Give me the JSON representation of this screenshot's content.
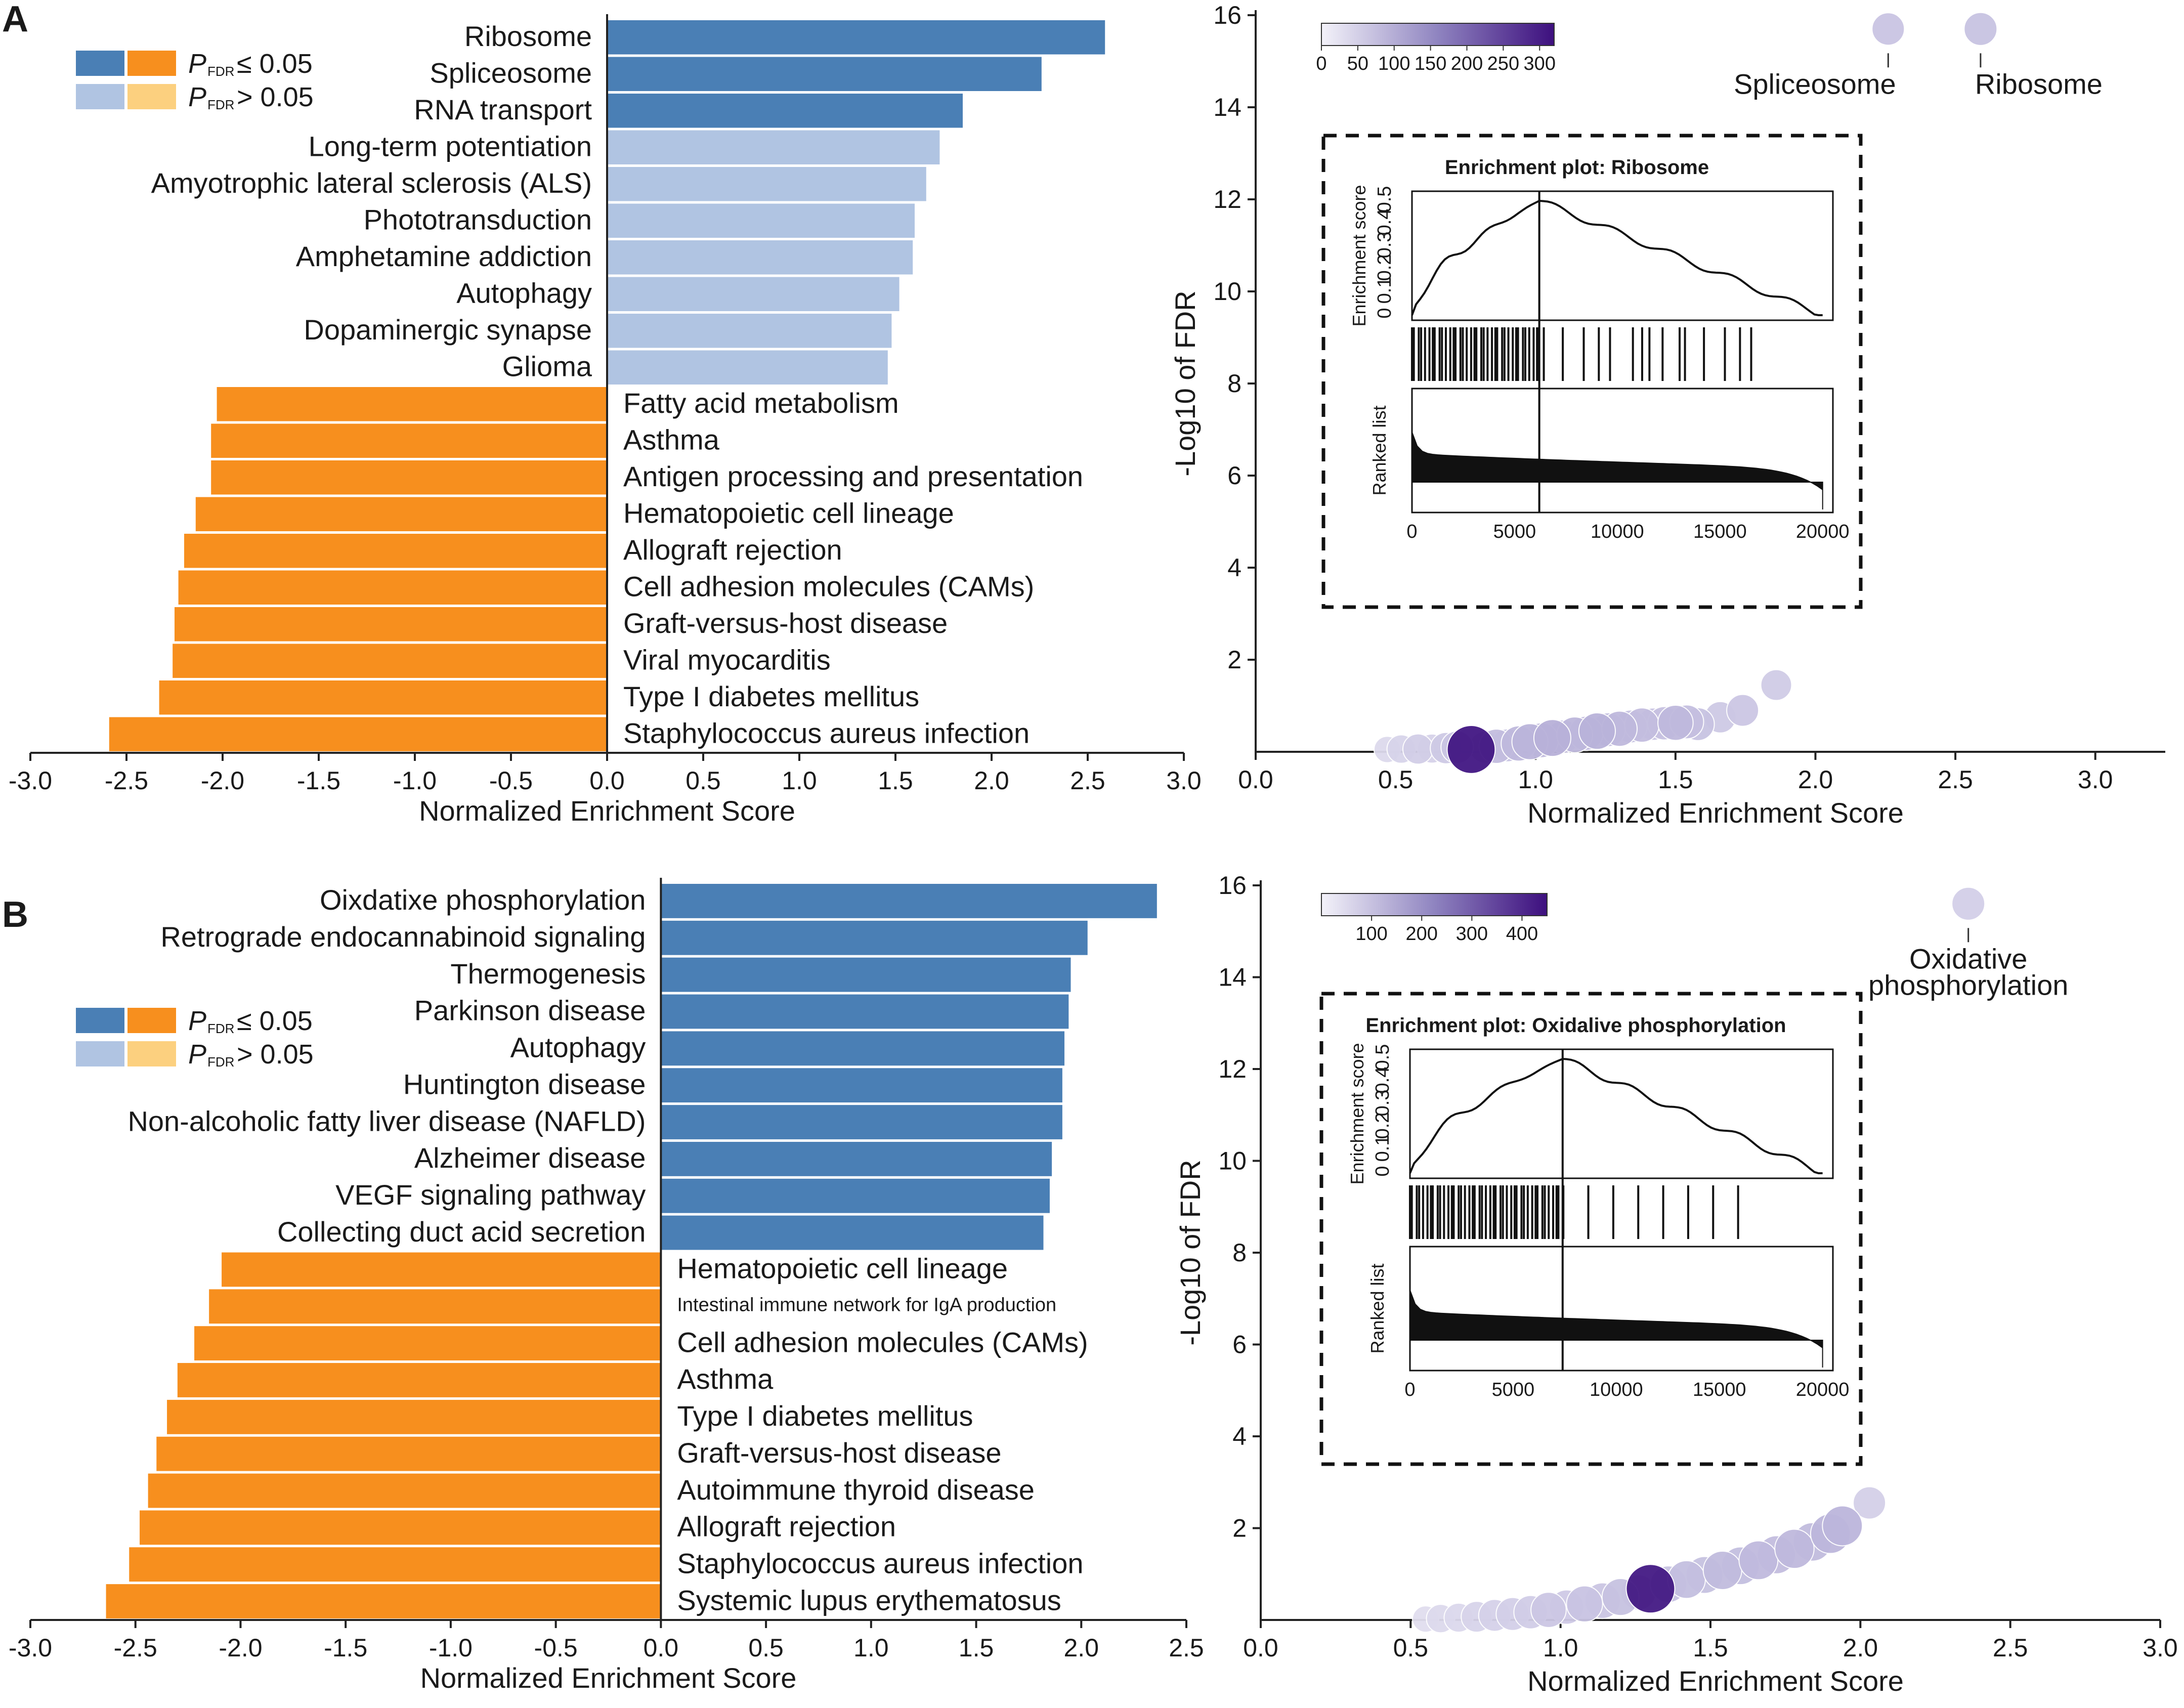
{
  "colors": {
    "sig_up": "#4a7fb5",
    "nonsig_up": "#b0c4e2",
    "sig_down": "#f78f1e",
    "nonsig_down": "#fcd07f",
    "bubble_light": "#e6e4f2",
    "bubble_dark": "#3d0f7e"
  },
  "chart_data": [
    {
      "panel": "A",
      "type": "bar",
      "orientation": "horizontal",
      "xlabel": "Normalized Enrichment Score",
      "xlim": [
        -3.0,
        3.0
      ],
      "xticks": [
        "-3.0",
        "-2.5",
        "-2.0",
        "-1.5",
        "-1.0",
        "-0.5",
        "0.0",
        "0.5",
        "1.0",
        "1.5",
        "2.0",
        "2.5",
        "3.0"
      ],
      "legend": [
        {
          "label": "P",
          "sub": "FDR",
          "rel": "≤ 0.05",
          "colors": [
            "#4a7fb5",
            "#f78f1e"
          ]
        },
        {
          "label": "P",
          "sub": "FDR",
          "rel": "> 0.05",
          "colors": [
            "#b0c4e2",
            "#fcd07f"
          ]
        }
      ],
      "bars": [
        {
          "term": "Ribosome",
          "value": 2.59,
          "sig": true
        },
        {
          "term": "Spliceosome",
          "value": 2.26,
          "sig": true
        },
        {
          "term": "RNA transport",
          "value": 1.85,
          "sig": true
        },
        {
          "term": "Long-term potentiation",
          "value": 1.73,
          "sig": false
        },
        {
          "term": "Amyotrophic lateral sclerosis (ALS)",
          "value": 1.66,
          "sig": false
        },
        {
          "term": "Phototransduction",
          "value": 1.6,
          "sig": false
        },
        {
          "term": "Amphetamine addiction",
          "value": 1.59,
          "sig": false
        },
        {
          "term": "Autophagy",
          "value": 1.52,
          "sig": false
        },
        {
          "term": "Dopaminergic synapse",
          "value": 1.48,
          "sig": false
        },
        {
          "term": "Glioma",
          "value": 1.46,
          "sig": false
        },
        {
          "term": "Fatty acid metabolism",
          "value": -2.03,
          "sig": true
        },
        {
          "term": "Asthma",
          "value": -2.06,
          "sig": true
        },
        {
          "term": "Antigen processing and presentation",
          "value": -2.06,
          "sig": true
        },
        {
          "term": "Hematopoietic cell lineage",
          "value": -2.14,
          "sig": true
        },
        {
          "term": "Allograft rejection",
          "value": -2.2,
          "sig": true
        },
        {
          "term": "Cell adhesion molecules (CAMs)",
          "value": -2.23,
          "sig": true
        },
        {
          "term": "Graft-versus-host disease",
          "value": -2.25,
          "sig": true
        },
        {
          "term": "Viral myocarditis",
          "value": -2.26,
          "sig": true
        },
        {
          "term": "Type I diabetes mellitus",
          "value": -2.33,
          "sig": true
        },
        {
          "term": "Staphylococcus aureus infection",
          "value": -2.59,
          "sig": true
        }
      ]
    },
    {
      "panel": "A",
      "type": "scatter",
      "xlabel": "Normalized Enrichment Score",
      "ylabel": "-Log10 of FDR",
      "xlim": [
        0.0,
        3.25
      ],
      "ylim": [
        0,
        16
      ],
      "xticks": [
        "0.0",
        "0.5",
        "1.0",
        "1.5",
        "2.0",
        "2.5",
        "3.0"
      ],
      "yticks": [
        "2",
        "4",
        "6",
        "8",
        "10",
        "12",
        "14",
        "16"
      ],
      "colorbar": {
        "min": 0,
        "max": 320,
        "ticks": [
          "0",
          "50",
          "100",
          "150",
          "200",
          "250",
          "300"
        ]
      },
      "annotations": [
        "Spliceosome",
        "Ribosome"
      ],
      "points": [
        {
          "x": 0.47,
          "y": 0.05,
          "size": 40
        },
        {
          "x": 0.52,
          "y": 0.06,
          "size": 55
        },
        {
          "x": 0.58,
          "y": 0.06,
          "size": 70
        },
        {
          "x": 0.63,
          "y": 0.07,
          "size": 60
        },
        {
          "x": 0.68,
          "y": 0.08,
          "size": 80
        },
        {
          "x": 0.72,
          "y": 0.1,
          "size": 90
        },
        {
          "x": 0.77,
          "y": 0.05,
          "size": 310
        },
        {
          "x": 0.82,
          "y": 0.1,
          "size": 85
        },
        {
          "x": 0.86,
          "y": 0.12,
          "size": 110
        },
        {
          "x": 0.9,
          "y": 0.14,
          "size": 95
        },
        {
          "x": 0.94,
          "y": 0.18,
          "size": 120
        },
        {
          "x": 0.98,
          "y": 0.22,
          "size": 130
        },
        {
          "x": 1.02,
          "y": 0.25,
          "size": 115
        },
        {
          "x": 1.06,
          "y": 0.3,
          "size": 140
        },
        {
          "x": 1.1,
          "y": 0.33,
          "size": 100
        },
        {
          "x": 1.14,
          "y": 0.37,
          "size": 125
        },
        {
          "x": 1.18,
          "y": 0.4,
          "size": 110
        },
        {
          "x": 1.22,
          "y": 0.45,
          "size": 135
        },
        {
          "x": 1.26,
          "y": 0.48,
          "size": 105
        },
        {
          "x": 1.3,
          "y": 0.5,
          "size": 120
        },
        {
          "x": 1.34,
          "y": 0.55,
          "size": 95
        },
        {
          "x": 1.38,
          "y": 0.58,
          "size": 110
        },
        {
          "x": 1.42,
          "y": 0.6,
          "size": 90
        },
        {
          "x": 1.46,
          "y": 0.62,
          "size": 100
        },
        {
          "x": 1.5,
          "y": 0.63,
          "size": 120
        },
        {
          "x": 1.54,
          "y": 0.65,
          "size": 105
        },
        {
          "x": 1.58,
          "y": 0.6,
          "size": 95
        },
        {
          "x": 1.66,
          "y": 0.75,
          "size": 80
        },
        {
          "x": 1.74,
          "y": 0.9,
          "size": 85
        },
        {
          "x": 1.86,
          "y": 1.45,
          "size": 75
        },
        {
          "x": 2.26,
          "y": 15.7,
          "size": 90
        },
        {
          "x": 2.59,
          "y": 15.7,
          "size": 95
        }
      ],
      "inset": {
        "title": "Enrichment plot: Ribosome",
        "es_label": "Enrichment score",
        "es_ticks": [
          "0",
          "0.1",
          "0.2",
          "0.3",
          "0.4",
          "0.5"
        ],
        "rank_label": "Ranked list",
        "x_ticks": [
          "0",
          "5000",
          "10000",
          "15000",
          "20000"
        ],
        "peak": 6200
      }
    },
    {
      "panel": "B",
      "type": "bar",
      "orientation": "horizontal",
      "xlabel": "Normalized Enrichment Score",
      "xlim": [
        -3.0,
        2.5
      ],
      "xticks": [
        "-3.0",
        "-2.5",
        "-2.0",
        "-1.5",
        "-1.0",
        "-0.5",
        "0.0",
        "0.5",
        "1.0",
        "1.5",
        "2.0",
        "2.5"
      ],
      "legend": [
        {
          "label": "P",
          "sub": "FDR",
          "rel": "≤ 0.05",
          "colors": [
            "#4a7fb5",
            "#f78f1e"
          ]
        },
        {
          "label": "P",
          "sub": "FDR",
          "rel": "> 0.05",
          "colors": [
            "#b0c4e2",
            "#fcd07f"
          ]
        }
      ],
      "bars": [
        {
          "term": "Oixdatixe phosphorylation",
          "value": 2.36,
          "sig": true
        },
        {
          "term": "Retrograde endocannabinoid signaling",
          "value": 2.03,
          "sig": true
        },
        {
          "term": "Thermogenesis",
          "value": 1.95,
          "sig": true
        },
        {
          "term": "Parkinson disease",
          "value": 1.94,
          "sig": true
        },
        {
          "term": "Autophagy",
          "value": 1.92,
          "sig": true
        },
        {
          "term": "Huntington disease",
          "value": 1.91,
          "sig": true
        },
        {
          "term": "Non-alcoholic fatty liver disease (NAFLD)",
          "value": 1.91,
          "sig": true
        },
        {
          "term": "Alzheimer disease",
          "value": 1.86,
          "sig": true
        },
        {
          "term": "VEGF signaling pathway",
          "value": 1.85,
          "sig": true
        },
        {
          "term": "Collecting duct acid secretion",
          "value": 1.82,
          "sig": true
        },
        {
          "term": "Hematopoietic cell lineage",
          "value": -2.09,
          "sig": true
        },
        {
          "term": "Intestinal immune network for IgA production",
          "value": -2.15,
          "sig": true,
          "small": true
        },
        {
          "term": "Cell adhesion molecules (CAMs)",
          "value": -2.22,
          "sig": true
        },
        {
          "term": "Asthma",
          "value": -2.3,
          "sig": true
        },
        {
          "term": "Type I diabetes mellitus",
          "value": -2.35,
          "sig": true
        },
        {
          "term": "Graft-versus-host disease",
          "value": -2.4,
          "sig": true
        },
        {
          "term": "Autoimmune thyroid disease",
          "value": -2.44,
          "sig": true
        },
        {
          "term": "Allograft rejection",
          "value": -2.48,
          "sig": true
        },
        {
          "term": "Staphylococcus aureus infection",
          "value": -2.53,
          "sig": true
        },
        {
          "term": "Systemic lupus erythematosus",
          "value": -2.64,
          "sig": true
        }
      ]
    },
    {
      "panel": "B",
      "type": "scatter",
      "xlabel": "Normalized Enrichment Score",
      "ylabel": "-Log10 of FDR",
      "xlim": [
        0.0,
        3.0
      ],
      "ylim": [
        0,
        16
      ],
      "xticks": [
        "0.0",
        "0.5",
        "1.0",
        "1.5",
        "2.0",
        "2.5",
        "3.0"
      ],
      "yticks": [
        "2",
        "4",
        "6",
        "8",
        "10",
        "12",
        "14",
        "16"
      ],
      "colorbar": {
        "min": 0,
        "max": 450,
        "ticks": [
          "100",
          "200",
          "300",
          "400"
        ]
      },
      "annotations": [
        "Oxidative",
        "phosphorylation"
      ],
      "points": [
        {
          "x": 0.55,
          "y": 0.02,
          "size": 40
        },
        {
          "x": 0.6,
          "y": 0.03,
          "size": 55
        },
        {
          "x": 0.66,
          "y": 0.05,
          "size": 60
        },
        {
          "x": 0.72,
          "y": 0.07,
          "size": 75
        },
        {
          "x": 0.78,
          "y": 0.1,
          "size": 85
        },
        {
          "x": 0.84,
          "y": 0.13,
          "size": 95
        },
        {
          "x": 0.9,
          "y": 0.17,
          "size": 100
        },
        {
          "x": 0.96,
          "y": 0.22,
          "size": 120
        },
        {
          "x": 1.02,
          "y": 0.28,
          "size": 110
        },
        {
          "x": 1.08,
          "y": 0.35,
          "size": 130
        },
        {
          "x": 1.14,
          "y": 0.42,
          "size": 125
        },
        {
          "x": 1.2,
          "y": 0.5,
          "size": 140
        },
        {
          "x": 1.26,
          "y": 0.6,
          "size": 120
        },
        {
          "x": 1.3,
          "y": 0.68,
          "size": 430
        },
        {
          "x": 1.36,
          "y": 0.78,
          "size": 135
        },
        {
          "x": 1.42,
          "y": 0.88,
          "size": 150
        },
        {
          "x": 1.48,
          "y": 0.98,
          "size": 140
        },
        {
          "x": 1.54,
          "y": 1.08,
          "size": 160
        },
        {
          "x": 1.6,
          "y": 1.18,
          "size": 150
        },
        {
          "x": 1.66,
          "y": 1.3,
          "size": 165
        },
        {
          "x": 1.72,
          "y": 1.42,
          "size": 155
        },
        {
          "x": 1.78,
          "y": 1.55,
          "size": 170
        },
        {
          "x": 1.84,
          "y": 1.7,
          "size": 160
        },
        {
          "x": 1.9,
          "y": 1.88,
          "size": 175
        },
        {
          "x": 1.94,
          "y": 2.05,
          "size": 180
        },
        {
          "x": 2.03,
          "y": 2.55,
          "size": 90
        },
        {
          "x": 2.36,
          "y": 15.6,
          "size": 95
        }
      ],
      "inset": {
        "title": "Enrichment plot: Oxidalive phosphorylation",
        "es_label": "Enrichment score",
        "es_ticks": [
          "0",
          "0.1",
          "0.2",
          "0.3",
          "0.4",
          "0.5"
        ],
        "rank_label": "Ranked list",
        "x_ticks": [
          "0",
          "5000",
          "10000",
          "15000",
          "20000"
        ],
        "peak": 7400
      }
    }
  ],
  "panels": {
    "a_letter": "A",
    "b_letter": "B"
  }
}
